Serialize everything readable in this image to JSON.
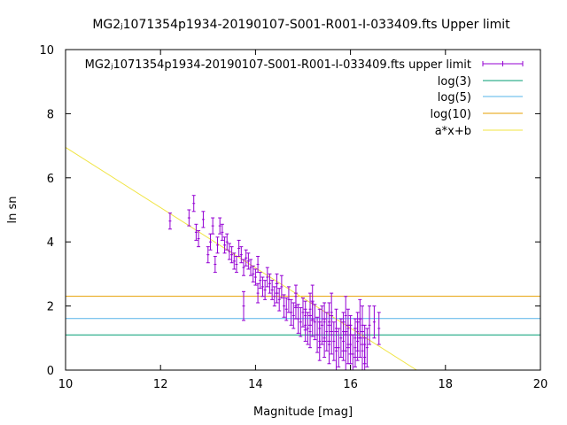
{
  "chart_data": {
    "type": "scatter",
    "title": "MG2ⱼ1071354p1934-20190107-S001-R001-I-033409.fts Upper limit",
    "xlabel": "Magnitude [mag]",
    "ylabel": "ln sn",
    "xlim": [
      10,
      20
    ],
    "ylim": [
      0,
      10
    ],
    "xticks": [
      "10",
      "12",
      "14",
      "16",
      "18",
      "20"
    ],
    "yticks": [
      "0",
      "2",
      "4",
      "6",
      "8",
      "10"
    ],
    "grid": false,
    "legend_position": "top-right",
    "colors": {
      "points": "#9400d3",
      "log3": "#009e73",
      "log5": "#56b4e9",
      "log10": "#e69f00",
      "fit": "#f0e442"
    },
    "series": [
      {
        "name": "MG2ⱼ1071354p1934-20190107-S001-R001-I-033409.fts upper limit",
        "kind": "errorbars",
        "x": [
          12.2,
          12.6,
          12.7,
          12.75,
          12.8,
          12.9,
          13.0,
          13.05,
          13.1,
          13.15,
          13.2,
          13.25,
          13.3,
          13.35,
          13.4,
          13.45,
          13.5,
          13.55,
          13.6,
          13.65,
          13.7,
          13.75,
          13.8,
          13.85,
          13.9,
          13.95,
          14.0,
          14.05,
          14.1,
          14.15,
          14.2,
          14.25,
          14.3,
          14.35,
          14.4,
          14.45,
          14.5,
          14.55,
          14.6,
          14.65,
          14.7,
          14.75,
          14.8,
          14.85,
          14.9,
          14.95,
          15.0,
          15.05,
          15.1,
          15.15,
          15.2,
          15.25,
          15.3,
          15.35,
          15.4,
          15.45,
          15.5,
          15.55,
          15.6,
          15.65,
          15.7,
          15.75,
          15.8,
          15.85,
          15.9,
          15.95,
          16.0,
          16.05,
          16.1,
          16.15,
          16.2,
          16.25,
          16.3,
          16.35,
          13.75,
          14.05,
          14.45,
          14.85,
          15.15,
          15.55,
          15.95,
          16.2,
          15.05,
          15.45,
          15.85,
          16.1,
          16.3,
          16.5,
          16.6,
          15.35,
          15.7,
          16.0,
          16.25,
          15.2,
          15.6,
          15.9,
          16.15,
          16.4
        ],
        "y": [
          4.65,
          4.75,
          5.2,
          4.3,
          4.1,
          4.7,
          3.6,
          4.0,
          4.5,
          3.3,
          3.9,
          4.5,
          4.3,
          3.9,
          4.0,
          3.7,
          3.6,
          3.4,
          3.3,
          3.8,
          3.6,
          3.2,
          3.5,
          3.4,
          3.2,
          3.0,
          2.9,
          3.3,
          2.8,
          2.6,
          2.5,
          2.9,
          2.7,
          2.5,
          2.3,
          2.4,
          2.2,
          2.6,
          2.0,
          1.9,
          2.2,
          1.8,
          1.7,
          2.0,
          1.6,
          1.5,
          1.8,
          1.4,
          1.3,
          1.2,
          1.6,
          1.5,
          1.1,
          1.3,
          1.4,
          1.0,
          1.2,
          0.8,
          1.1,
          0.9,
          1.3,
          0.7,
          1.0,
          0.9,
          0.6,
          0.8,
          1.1,
          0.5,
          0.7,
          0.9,
          1.0,
          0.6,
          0.8,
          0.7,
          2.0,
          2.4,
          2.7,
          2.3,
          1.9,
          1.5,
          1.3,
          1.6,
          1.7,
          1.5,
          1.2,
          1.0,
          0.4,
          1.5,
          1.3,
          0.9,
          0.6,
          0.8,
          1.4,
          2.1,
          1.8,
          1.7,
          1.2,
          1.4
        ],
        "yerr": [
          0.25,
          0.25,
          0.25,
          0.25,
          0.25,
          0.25,
          0.25,
          0.25,
          0.25,
          0.25,
          0.25,
          0.25,
          0.25,
          0.25,
          0.25,
          0.25,
          0.25,
          0.25,
          0.25,
          0.25,
          0.25,
          0.25,
          0.25,
          0.25,
          0.25,
          0.25,
          0.25,
          0.25,
          0.25,
          0.3,
          0.3,
          0.3,
          0.3,
          0.3,
          0.3,
          0.3,
          0.35,
          0.35,
          0.35,
          0.35,
          0.4,
          0.4,
          0.4,
          0.4,
          0.45,
          0.45,
          0.45,
          0.5,
          0.5,
          0.5,
          0.55,
          0.55,
          0.55,
          0.6,
          0.6,
          0.6,
          0.6,
          0.6,
          0.6,
          0.6,
          0.6,
          0.6,
          0.6,
          0.6,
          0.6,
          0.6,
          0.6,
          0.6,
          0.6,
          0.6,
          0.6,
          0.6,
          0.6,
          0.6,
          0.45,
          0.3,
          0.3,
          0.35,
          0.5,
          0.6,
          0.6,
          0.6,
          0.45,
          0.6,
          0.6,
          0.6,
          0.6,
          0.5,
          0.5,
          0.6,
          0.6,
          0.6,
          0.6,
          0.55,
          0.6,
          0.6,
          0.6,
          0.6
        ]
      },
      {
        "name": "log(3)",
        "kind": "hline",
        "y": 1.0986
      },
      {
        "name": "log(5)",
        "kind": "hline",
        "y": 1.6094
      },
      {
        "name": "log(10)",
        "kind": "hline",
        "y": 2.3026
      },
      {
        "name": "a*x+b",
        "kind": "fitline",
        "slope": -0.94,
        "intercept": 16.35
      }
    ]
  }
}
